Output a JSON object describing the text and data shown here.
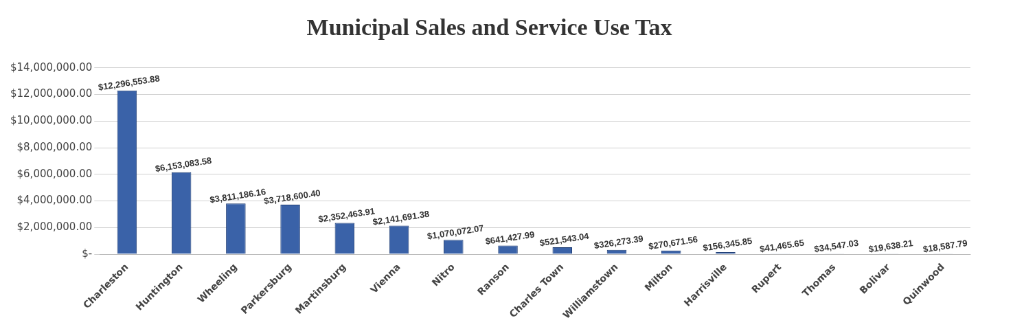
{
  "chart_data": {
    "type": "bar",
    "title": "Municipal Sales and Service Use Tax",
    "categories": [
      "Charleston",
      "Huntington",
      "Wheeling",
      "Parkersburg",
      "Martinsburg",
      "Vienna",
      "Nitro",
      "Ranson",
      "Charles Town",
      "Williamstown",
      "Milton",
      "Harrisville",
      "Rupert",
      "Thomas",
      "Bolivar",
      "Quinwood"
    ],
    "values": [
      12296553.88,
      6153083.58,
      3811186.16,
      3718600.4,
      2352463.91,
      2141691.38,
      1070072.07,
      641427.99,
      521543.04,
      326273.39,
      270671.56,
      156345.85,
      41465.65,
      34547.03,
      19638.21,
      18587.79
    ],
    "value_labels": [
      "$12,296,553.88",
      "$6,153,083.58",
      "$3,811,186.16",
      "$3,718,600.40",
      "$2,352,463.91",
      "$2,141,691.38",
      "$1,070,072.07",
      "$641,427.99",
      "$521,543.04",
      "$326,273.39",
      "$270,671.56",
      "$156,345.85",
      "$41,465.65",
      "$34,547.03",
      "$19,638.21",
      "$18,587.79"
    ],
    "color": "#3a62a8",
    "ylim": [
      0,
      14000000
    ],
    "yticks": [
      {
        "value": 0,
        "label": "$-"
      },
      {
        "value": 2000000,
        "label": "$2,000,000.00"
      },
      {
        "value": 4000000,
        "label": "$4,000,000.00"
      },
      {
        "value": 6000000,
        "label": "$6,000,000.00"
      },
      {
        "value": 8000000,
        "label": "$8,000,000.00"
      },
      {
        "value": 10000000,
        "label": "$10,000,000.00"
      },
      {
        "value": 12000000,
        "label": "$12,000,000.00"
      },
      {
        "value": 14000000,
        "label": "$14,000,000.00"
      }
    ],
    "grid": "y",
    "legend": false
  }
}
